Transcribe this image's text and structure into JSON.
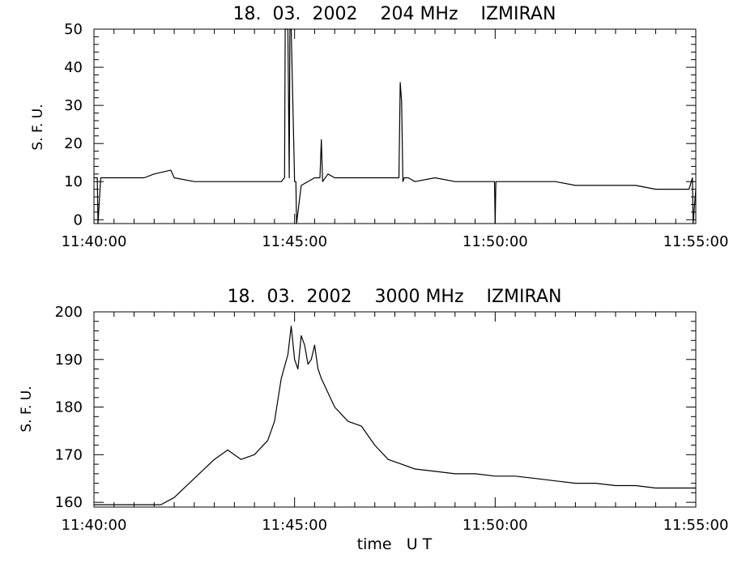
{
  "chart_data": [
    {
      "type": "line",
      "title": "18.  03.  2002    204 MHz    IZMIRAN",
      "ylabel": "S. F. U.",
      "xlabel": "",
      "xlim": [
        "11:40:00",
        "11:55:00"
      ],
      "ylim": [
        -1,
        50
      ],
      "xticks": [
        "11:40:00",
        "11:45:00",
        "11:50:00",
        "11:55:00"
      ],
      "yticks": [
        0,
        10,
        20,
        30,
        40,
        50
      ],
      "grid": false,
      "series": [
        {
          "x": [
            "11:40:00",
            "11:40:05",
            "11:40:06",
            "11:40:10",
            "11:40:30",
            "11:41:00",
            "11:41:15",
            "11:41:30",
            "11:41:55",
            "11:42:00",
            "11:42:30",
            "11:43:00",
            "11:43:30",
            "11:43:50",
            "11:44:00",
            "11:44:30",
            "11:44:40",
            "11:44:45",
            "11:44:46",
            "11:44:50",
            "11:44:52",
            "11:44:53",
            "11:44:55",
            "11:45:00",
            "11:45:02",
            "11:45:03",
            "11:45:10",
            "11:45:30",
            "11:45:38",
            "11:45:40",
            "11:45:42",
            "11:45:50",
            "11:46:00",
            "11:46:20",
            "11:46:40",
            "11:47:00",
            "11:47:20",
            "11:47:36",
            "11:47:38",
            "11:47:40",
            "11:47:42",
            "11:47:44",
            "11:47:50",
            "11:48:00",
            "11:48:30",
            "11:49:00",
            "11:49:30",
            "11:49:59",
            "11:50:00",
            "11:50:01",
            "11:50:30",
            "11:51:00",
            "11:51:30",
            "11:52:00",
            "11:52:30",
            "11:53:00",
            "11:53:30",
            "11:54:00",
            "11:54:30",
            "11:54:50",
            "11:54:55",
            "11:54:56",
            "11:55:00"
          ],
          "y": [
            11,
            11,
            -1,
            11,
            11,
            11,
            11,
            12,
            13,
            11,
            10,
            10,
            10,
            10,
            10,
            10,
            10,
            11,
            50,
            50,
            11,
            50,
            50,
            10,
            10,
            -1,
            9,
            11,
            11,
            21,
            10,
            12,
            11,
            11,
            11,
            11,
            11,
            11,
            36,
            31,
            10,
            11,
            11,
            10,
            11,
            10,
            10,
            10,
            -1,
            10,
            10,
            10,
            10,
            9,
            9,
            9,
            9,
            8,
            8,
            8,
            11,
            -1,
            8
          ]
        }
      ]
    },
    {
      "type": "line",
      "title": "18.  03.  2002    3000 MHz    IZMIRAN",
      "ylabel": "S. F. U.",
      "xlabel": "time   U T",
      "xlim": [
        "11:40:00",
        "11:55:00"
      ],
      "ylim": [
        159,
        200
      ],
      "xticks": [
        "11:40:00",
        "11:45:00",
        "11:50:00",
        "11:55:00"
      ],
      "yticks": [
        160,
        170,
        180,
        190,
        200
      ],
      "grid": false,
      "series": [
        {
          "x": [
            "11:40:00",
            "11:41:00",
            "11:41:40",
            "11:42:00",
            "11:42:30",
            "11:43:00",
            "11:43:20",
            "11:43:40",
            "11:44:00",
            "11:44:20",
            "11:44:30",
            "11:44:40",
            "11:44:50",
            "11:44:55",
            "11:45:00",
            "11:45:05",
            "11:45:10",
            "11:45:15",
            "11:45:20",
            "11:45:25",
            "11:45:30",
            "11:45:35",
            "11:45:40",
            "11:46:00",
            "11:46:20",
            "11:46:40",
            "11:47:00",
            "11:47:20",
            "11:47:40",
            "11:48:00",
            "11:48:30",
            "11:49:00",
            "11:49:30",
            "11:50:00",
            "11:50:30",
            "11:51:00",
            "11:51:30",
            "11:52:00",
            "11:52:30",
            "11:53:00",
            "11:53:30",
            "11:54:00",
            "11:54:30",
            "11:55:00"
          ],
          "y": [
            159.5,
            159.5,
            159.5,
            161,
            165,
            169,
            171,
            169,
            170,
            173,
            177,
            186,
            191,
            197,
            190,
            188,
            195,
            193,
            189,
            190,
            193,
            188,
            186,
            180,
            177,
            176,
            172,
            169,
            168,
            167,
            166.5,
            166,
            166,
            165.5,
            165.5,
            165,
            164.5,
            164,
            164,
            163.5,
            163.5,
            163,
            163,
            163
          ]
        }
      ]
    }
  ]
}
